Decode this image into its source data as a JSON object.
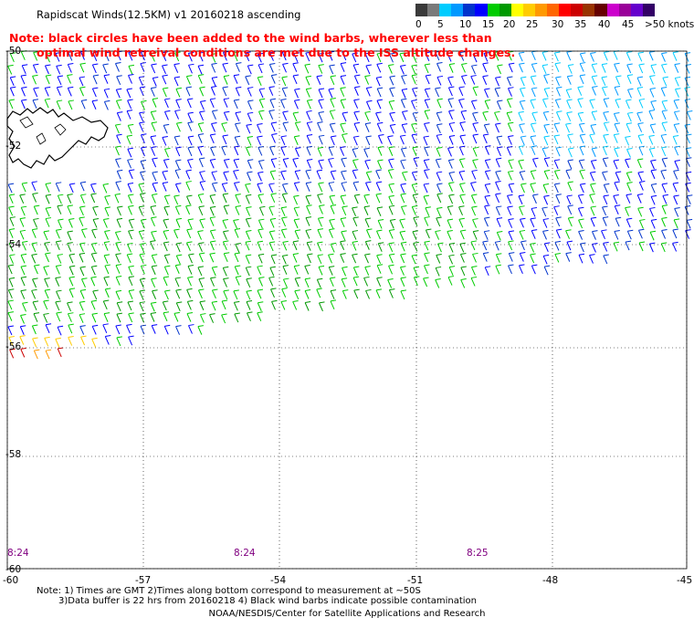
{
  "header": {
    "title": "Rapidscat Winds(12.5KM) v1 20160218 ascending",
    "note_line1": "Note: black circles have been added to the wind barbs, wherever less than",
    "note_line2": "optimal wind retreival conditions are met due to the ISS altitude changes."
  },
  "legend": {
    "colors": [
      "#3a3a3a",
      "#7a7a7a",
      "#00ccff",
      "#0099ff",
      "#0033cc",
      "#0000ff",
      "#00cc00",
      "#009900",
      "#ffff00",
      "#ffcc00",
      "#ff9900",
      "#ff6600",
      "#ff0000",
      "#cc0000",
      "#993300",
      "#660000",
      "#cc00cc",
      "#990099",
      "#6600cc",
      "#330066"
    ],
    "labels": [
      "0",
      "5",
      "10",
      "15",
      "20",
      "25",
      "30",
      "35",
      "40",
      "45",
      ">50 knots"
    ]
  },
  "axes": {
    "lat_labels": [
      "-50",
      "-52",
      "-54",
      "-56",
      "-58",
      "-60"
    ],
    "lon_labels": [
      "-60",
      "-57",
      "-54",
      "-51",
      "-48",
      "-45"
    ]
  },
  "times": [
    "8:24",
    "8:24",
    "8:25"
  ],
  "footer": {
    "note1": "Note: 1) Times are GMT 2)Times along bottom correspond to measurement at ~50S",
    "note2": "3)Data buffer is 22 hrs from 20160218 4) Black wind barbs indicate possible contamination",
    "credit": "NOAA/NESDIS/Center for Satellite Applications and Research"
  }
}
